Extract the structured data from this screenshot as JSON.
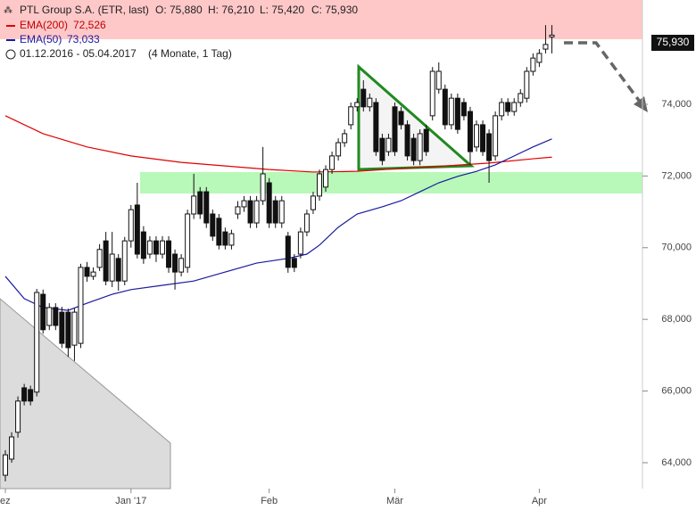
{
  "chart_data": {
    "type": "candlestick",
    "title": "PTL Group S.A. (ETR, last)",
    "ohlc_text": [
      "O: 75,880",
      "H: 76,210",
      "L: 75,420",
      "C: 75,930"
    ],
    "period": "01.12.2016 - 05.04.2017",
    "period_note": "(4 Monate, 1 Tag)",
    "last_price_label": "75,930",
    "categories": [
      "ez",
      null,
      null,
      null,
      null,
      null,
      null,
      null,
      null,
      null,
      null,
      null,
      null,
      null,
      null,
      null,
      null,
      null,
      null,
      null,
      "Jan '17",
      null,
      null,
      null,
      null,
      null,
      null,
      null,
      null,
      null,
      null,
      null,
      null,
      null,
      null,
      null,
      null,
      null,
      null,
      null,
      null,
      null,
      "Feb",
      null,
      null,
      null,
      null,
      null,
      null,
      null,
      null,
      null,
      null,
      null,
      null,
      null,
      null,
      null,
      null,
      null,
      null,
      null,
      "Mär",
      null,
      null,
      null,
      null,
      null,
      null,
      null,
      null,
      null,
      null,
      null,
      null,
      null,
      null,
      null,
      null,
      null,
      null,
      null,
      null,
      null,
      null,
      "Apr",
      null,
      null
    ],
    "open": [
      63.65,
      64.1,
      64.85,
      66.09,
      66.04,
      65.97,
      68.7,
      67.83,
      68.33,
      68.2,
      68.2,
      67.28,
      67.33,
      69.45,
      69.2,
      69.45,
      70.19,
      69.07,
      69.7,
      69.07,
      70.19,
      71.19,
      70.44,
      69.82,
      70.19,
      69.82,
      70.19,
      69.82,
      69.32,
      69.45,
      70.94,
      71.56,
      71.56,
      70.94,
      70.82,
      70.44,
      70.07,
      70.94,
      71.14,
      71.31,
      70.69,
      71.31,
      71.81,
      71.31,
      70.69,
      70.32,
      69.7,
      69.82,
      70.44,
      71.06,
      71.44,
      71.69,
      72.18,
      72.56,
      72.93,
      73.43,
      73.93,
      74.42,
      73.93,
      74.05,
      73.05,
      72.68,
      73.93,
      73.8,
      73.43,
      73.05,
      72.43,
      73.3,
      73.68,
      74.42,
      74.42,
      73.43,
      74.17,
      74.05,
      73.8,
      72.81,
      73.43,
      73.18,
      72.56,
      73.68,
      74.05,
      73.8,
      74.05,
      74.17,
      74.92,
      75.17,
      75.54,
      75.88
    ],
    "high": [
      64.35,
      64.85,
      65.85,
      66.2,
      66.15,
      68.85,
      68.83,
      68.45,
      68.45,
      68.35,
      68.3,
      68.3,
      69.55,
      69.6,
      69.45,
      70.1,
      70.44,
      70.44,
      69.82,
      70.3,
      71.19,
      71.81,
      70.6,
      70.32,
      70.32,
      70.32,
      70.32,
      69.95,
      69.82,
      71.06,
      72.06,
      71.69,
      71.69,
      71.06,
      70.94,
      70.56,
      70.5,
      71.3,
      71.44,
      71.44,
      71.44,
      72.81,
      71.94,
      71.44,
      71.44,
      70.44,
      69.82,
      70.56,
      71.06,
      71.56,
      72.18,
      72.3,
      72.68,
      73.05,
      73.3,
      74.05,
      74.17,
      74.67,
      74.3,
      74.17,
      73.18,
      73.18,
      74.05,
      73.93,
      73.55,
      73.18,
      73.3,
      73.43,
      75.04,
      75.17,
      74.55,
      74.3,
      74.3,
      74.17,
      73.93,
      73.55,
      73.55,
      73.3,
      73.8,
      74.17,
      74.17,
      74.17,
      74.42,
      75.04,
      75.42,
      75.54,
      76.21,
      76.21
    ],
    "low": [
      63.48,
      64.0,
      64.7,
      65.6,
      65.6,
      65.85,
      67.6,
      67.7,
      67.7,
      67.2,
      66.95,
      66.84,
      67.2,
      69.05,
      69.1,
      69.35,
      68.95,
      68.9,
      68.8,
      68.95,
      70.0,
      69.7,
      69.55,
      69.7,
      69.6,
      69.7,
      69.3,
      68.83,
      69.2,
      69.3,
      70.8,
      70.8,
      70.55,
      70.19,
      69.95,
      69.95,
      69.95,
      70.8,
      71.0,
      70.55,
      70.55,
      71.19,
      70.55,
      70.55,
      70.55,
      69.3,
      69.32,
      69.7,
      70.32,
      70.94,
      71.31,
      71.56,
      72.06,
      72.43,
      72.81,
      73.3,
      73.8,
      73.8,
      73.8,
      72.56,
      72.3,
      72.56,
      72.56,
      73.3,
      72.43,
      72.3,
      72.3,
      72.56,
      73.55,
      74.3,
      73.3,
      73.3,
      73.18,
      73.55,
      72.3,
      72.68,
      72.56,
      71.81,
      72.43,
      73.55,
      73.68,
      73.68,
      73.93,
      74.05,
      74.8,
      75.04,
      75.42,
      75.42
    ],
    "close": [
      64.22,
      64.72,
      65.72,
      65.72,
      65.72,
      68.75,
      67.71,
      68.33,
      67.83,
      67.33,
      67.21,
      68.2,
      69.45,
      69.2,
      69.32,
      69.95,
      69.07,
      69.82,
      69.07,
      70.19,
      71.06,
      69.82,
      69.7,
      70.19,
      69.82,
      70.19,
      69.45,
      69.32,
      69.7,
      70.94,
      71.44,
      70.94,
      70.69,
      70.32,
      70.07,
      70.07,
      70.39,
      71.14,
      71.31,
      70.69,
      71.31,
      72.06,
      70.69,
      70.69,
      71.31,
      69.45,
      69.45,
      70.44,
      70.94,
      71.44,
      72.06,
      72.18,
      72.56,
      72.93,
      73.18,
      73.93,
      74.05,
      73.93,
      74.17,
      72.68,
      72.43,
      73.05,
      72.68,
      73.43,
      72.56,
      72.43,
      73.18,
      72.68,
      74.92,
      74.92,
      73.43,
      74.17,
      73.3,
      73.68,
      72.68,
      73.43,
      72.68,
      72.43,
      73.68,
      74.05,
      73.8,
      74.05,
      74.3,
      74.92,
      75.29,
      75.42,
      75.67,
      75.93
    ],
    "series": [
      {
        "name": "EMA(200)",
        "value_label": "72,526",
        "color": "#e00000",
        "x": [
          0,
          6,
          13,
          20,
          28,
          35,
          42,
          49,
          56,
          63,
          70,
          77,
          84,
          87
        ],
        "values": [
          73.68,
          73.18,
          72.81,
          72.56,
          72.38,
          72.28,
          72.18,
          72.11,
          72.13,
          72.21,
          72.28,
          72.36,
          72.48,
          72.526
        ]
      },
      {
        "name": "EMA(50)",
        "value_label": "73,033",
        "color": "#1a1aa0",
        "x": [
          0,
          3,
          6,
          10,
          13,
          17,
          20,
          25,
          30,
          35,
          40,
          45,
          48,
          50,
          53,
          56,
          60,
          63,
          66,
          69,
          72,
          75,
          78,
          81,
          84,
          87
        ],
        "values": [
          69.2,
          68.58,
          68.33,
          68.25,
          68.45,
          68.7,
          68.83,
          68.95,
          69.07,
          69.32,
          69.57,
          69.7,
          69.82,
          70.07,
          70.57,
          70.94,
          71.14,
          71.31,
          71.56,
          71.81,
          71.99,
          72.13,
          72.31,
          72.56,
          72.81,
          73.033
        ]
      }
    ],
    "ylim": [
      63.3,
      76.95
    ],
    "yticks": [
      {
        "value": 64,
        "label": "64,000"
      },
      {
        "value": 66,
        "label": "66,000"
      },
      {
        "value": 68,
        "label": "68,000"
      },
      {
        "value": 70,
        "label": "70,000"
      },
      {
        "value": 72,
        "label": "72,000"
      },
      {
        "value": 74,
        "label": "74,000"
      }
    ]
  }
}
